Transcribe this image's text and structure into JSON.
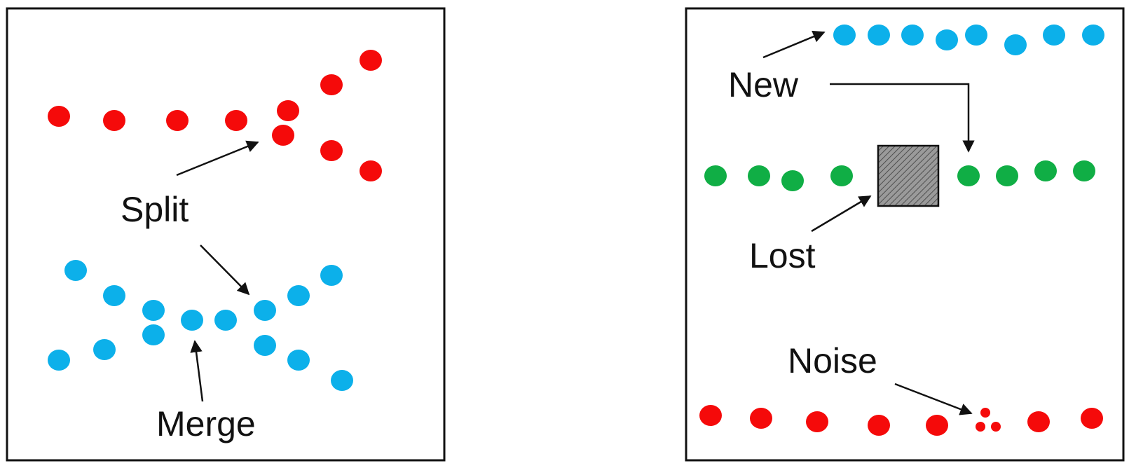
{
  "colors": {
    "red": "#f50a0a",
    "blue": "#0cb0ea",
    "green": "#10ae45",
    "outline": "#111111",
    "occluder_fill": "#8a8a8a"
  },
  "left_panel": {
    "labels": {
      "split": "Split",
      "merge": "Merge"
    }
  },
  "right_panel": {
    "labels": {
      "new": "New",
      "lost": "Lost",
      "noise": "Noise"
    }
  }
}
